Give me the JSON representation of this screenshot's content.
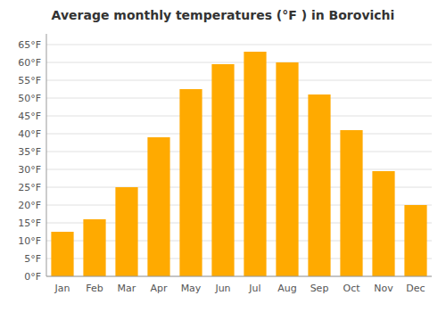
{
  "chart_data": {
    "type": "bar",
    "title": "Average monthly temperatures (°F ) in Borovichi",
    "categories": [
      "Jan",
      "Feb",
      "Mar",
      "Apr",
      "May",
      "Jun",
      "Jul",
      "Aug",
      "Sep",
      "Oct",
      "Nov",
      "Dec"
    ],
    "values": [
      12.5,
      16,
      25,
      39,
      52.5,
      59.5,
      63,
      60,
      51,
      41,
      29.5,
      20
    ],
    "color": "#FFAA00",
    "ylim": [
      0,
      68
    ],
    "yticks": [
      {
        "value": 0,
        "label": "0°F"
      },
      {
        "value": 5,
        "label": "5°F"
      },
      {
        "value": 10,
        "label": "10°F"
      },
      {
        "value": 15,
        "label": "15°F"
      },
      {
        "value": 20,
        "label": "20°F"
      },
      {
        "value": 25,
        "label": "25°F"
      },
      {
        "value": 30,
        "label": "30°F"
      },
      {
        "value": 35,
        "label": "35°F"
      },
      {
        "value": 40,
        "label": "40°F"
      },
      {
        "value": 45,
        "label": "45°F"
      },
      {
        "value": 50,
        "label": "50°F"
      },
      {
        "value": 55,
        "label": "55°F"
      },
      {
        "value": 60,
        "label": "60°F"
      },
      {
        "value": 65,
        "label": "65°F"
      }
    ],
    "grid": true
  }
}
